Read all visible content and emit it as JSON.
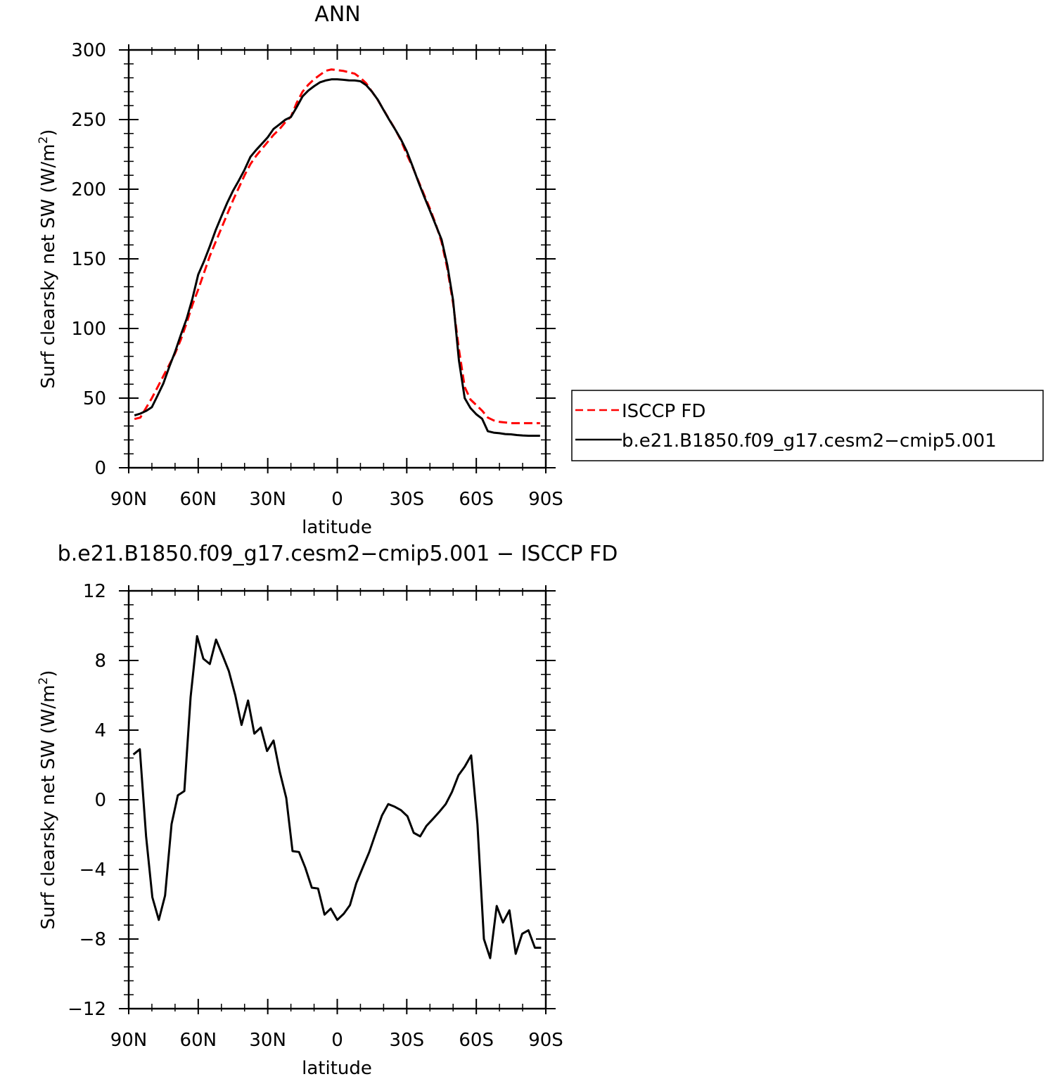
{
  "chart_data": [
    {
      "type": "line",
      "title": "ANN",
      "xlabel": "latitude",
      "ylabel": "Surf clearsky net SW (W/m",
      "ylabel_sup": "2",
      "ylabel_close": ")",
      "x_direction": "90N to 90S (latitude descending)",
      "xlim": [
        90,
        -90
      ],
      "ylim": [
        0,
        300
      ],
      "x_ticks": [
        90,
        60,
        30,
        0,
        -30,
        -60,
        -90
      ],
      "x_tick_labels": [
        "90N",
        "60N",
        "30N",
        "0",
        "30S",
        "60S",
        "90S"
      ],
      "y_ticks": [
        0,
        50,
        100,
        150,
        200,
        250,
        300
      ],
      "y_tick_labels": [
        "0",
        "50",
        "100",
        "150",
        "200",
        "250",
        "300"
      ],
      "grid": false,
      "legend_position": "right, outside plot",
      "series": [
        {
          "name": "ISCCP FD",
          "color": "#ff0000",
          "style": "dashed",
          "x": [
            87.5,
            85,
            82.5,
            80,
            77.5,
            75,
            72.5,
            70,
            67.5,
            65,
            62.5,
            60,
            57.5,
            55,
            52.5,
            50,
            47.5,
            45,
            42.5,
            40,
            37.5,
            35,
            32.5,
            30,
            27.5,
            25,
            22.5,
            20,
            17.5,
            15,
            12.5,
            10,
            7.5,
            5,
            2.5,
            0,
            -2.5,
            -5,
            -7.5,
            -10,
            -12.5,
            -15,
            -17.5,
            -20,
            -22.5,
            -25,
            -27.5,
            -30,
            -32.5,
            -35,
            -37.5,
            -40,
            -42.5,
            -45,
            -47.5,
            -50,
            -52.5,
            -55,
            -57.5,
            -60,
            -62.5,
            -65,
            -67.5,
            -70,
            -72.5,
            -75,
            -77.5,
            -80,
            -82.5,
            -85,
            -87.5
          ],
          "values": [
            35,
            36,
            43,
            50,
            58,
            66,
            74,
            82,
            92,
            104,
            117,
            128,
            140,
            152,
            162,
            172,
            182,
            192,
            201,
            210,
            218,
            224,
            229,
            234,
            239,
            243,
            248,
            252,
            262,
            270,
            275,
            279,
            282,
            285,
            286,
            285.5,
            285,
            284,
            283,
            280,
            276,
            270,
            264,
            257,
            250,
            243,
            235,
            225,
            216,
            206,
            196,
            186,
            175,
            162,
            143,
            118,
            85,
            58,
            49,
            45,
            41,
            36,
            34,
            33,
            32.5,
            32,
            32,
            32,
            32,
            32,
            32
          ]
        },
        {
          "name": "b.e21.B1850.f09_g17.cesm2−cmip5.001",
          "color": "#000000",
          "style": "solid",
          "x": [
            87.5,
            85,
            82.5,
            80,
            77.5,
            75,
            72.5,
            70,
            67.5,
            65,
            62.5,
            60,
            57.5,
            55,
            52.5,
            50,
            47.5,
            45,
            42.5,
            40,
            37.5,
            35,
            32.5,
            30,
            27.5,
            25,
            22.5,
            20,
            17.5,
            15,
            12.5,
            10,
            7.5,
            5,
            2.5,
            0,
            -2.5,
            -5,
            -7.5,
            -10,
            -12.5,
            -15,
            -17.5,
            -20,
            -22.5,
            -25,
            -27.5,
            -30,
            -32.5,
            -35,
            -37.5,
            -40,
            -42.5,
            -45,
            -47.5,
            -50,
            -52.5,
            -55,
            -57.5,
            -60,
            -62.5,
            -65,
            -67.5,
            -70,
            -72.5,
            -75,
            -77.5,
            -80,
            -82.5,
            -85,
            -87.5
          ],
          "values": [
            37.6,
            38.9,
            40.8,
            43.5,
            52,
            60.7,
            72.5,
            83.2,
            95.4,
            107,
            121.5,
            138.7,
            148.3,
            159,
            170.4,
            180.5,
            190.2,
            198.9,
            206.2,
            214,
            223.2,
            228.2,
            232.7,
            237.3,
            243.3,
            246.4,
            249.8,
            251.8,
            258.9,
            266.6,
            270.8,
            274,
            276.7,
            278.1,
            278.9,
            278.9,
            278.6,
            278.2,
            278.1,
            277.5,
            274.7,
            270,
            264.2,
            256.8,
            249.7,
            242.9,
            235.7,
            227.3,
            216.5,
            205.3,
            194.8,
            184.6,
            174.3,
            163.9,
            145.5,
            120.2,
            77,
            50,
            42.9,
            38.4,
            35.2,
            26.2,
            25.2,
            24.8,
            24.2,
            24,
            23.5,
            23.2,
            23,
            23,
            23
          ]
        }
      ]
    },
    {
      "type": "line",
      "title": "b.e21.B1850.f09_g17.cesm2−cmip5.001 − ISCCP FD",
      "xlabel": "latitude",
      "ylabel": "Surf clearsky net SW (W/m",
      "ylabel_sup": "2",
      "ylabel_close": ")",
      "x_direction": "90N to 90S (latitude descending)",
      "xlim": [
        90,
        -90
      ],
      "ylim": [
        -12,
        12
      ],
      "x_ticks": [
        90,
        60,
        30,
        0,
        -30,
        -60,
        -90
      ],
      "x_tick_labels": [
        "90N",
        "60N",
        "30N",
        "0",
        "30S",
        "60S",
        "90S"
      ],
      "y_ticks": [
        -12,
        -8,
        -4,
        0,
        4,
        8,
        12
      ],
      "y_tick_labels": [
        "−12",
        "−8",
        "−4",
        "0",
        "4",
        "8",
        "12"
      ],
      "grid": false,
      "series": [
        {
          "color": "#000000",
          "style": "solid",
          "x": [
            88,
            85.2,
            82.5,
            79.8,
            77,
            74.3,
            71.5,
            68.8,
            66,
            63.3,
            60.5,
            57.8,
            55,
            52.3,
            49.5,
            46.8,
            44,
            41.3,
            38.5,
            35.8,
            33,
            30.3,
            27.5,
            24.8,
            22,
            19.3,
            16.5,
            13.8,
            11,
            8.3,
            5.5,
            2.8,
            0,
            -2.8,
            -5.5,
            -8.2,
            -11,
            -13.8,
            -16.5,
            -19.3,
            -22,
            -24.8,
            -27.5,
            -30.3,
            -33,
            -35.8,
            -38.5,
            -41.3,
            -44,
            -46.8,
            -49.5,
            -52.3,
            -55,
            -57.8,
            -60.5,
            -63.3,
            -66,
            -68.8,
            -71.5,
            -74.3,
            -77,
            -79.8,
            -82.5,
            -85.3,
            -88
          ],
          "values": [
            2.6,
            2.9,
            -2.1,
            -5.6,
            -6.9,
            -5.5,
            -1.4,
            0.25,
            0.5,
            5.9,
            9.4,
            8.1,
            7.8,
            9.2,
            8.3,
            7.4,
            6,
            4.3,
            5.7,
            3.8,
            4.15,
            2.8,
            3.4,
            1.6,
            0.1,
            -2.95,
            -3,
            -3.9,
            -5.05,
            -5.1,
            -6.6,
            -6.25,
            -6.9,
            -6.55,
            -6.05,
            -4.8,
            -3.9,
            -3,
            -1.95,
            -0.9,
            -0.25,
            -0.4,
            -0.6,
            -0.95,
            -1.9,
            -2.1,
            -1.5,
            -1.1,
            -0.7,
            -0.25,
            0.45,
            1.4,
            1.9,
            2.55,
            -1.4,
            -8,
            -9.1,
            -6.1,
            -7.05,
            -6.35,
            -8.85,
            -7.7,
            -7.5,
            -8.5,
            -8.5
          ]
        }
      ]
    }
  ]
}
